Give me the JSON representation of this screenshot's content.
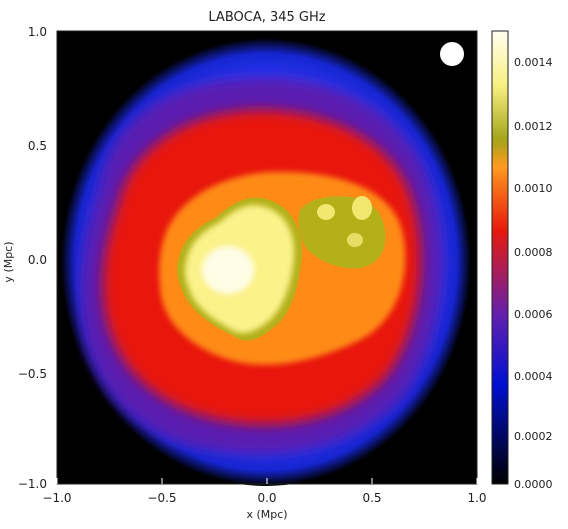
{
  "figure": {
    "title": "LABOCA, 345 GHz",
    "x_axis_label": "x (Mpc)",
    "y_axis_label": "y (Mpc)",
    "x_ticks": [
      "−1.0",
      "−0.5",
      "0.0",
      "0.5",
      "1.0"
    ],
    "y_ticks": [
      "1.0",
      "0.5",
      "0.0",
      "−0.5",
      "−1.0"
    ],
    "colorbar_ticks": [
      "0.0014",
      "0.0012",
      "0.0010",
      "0.0008",
      "0.0006",
      "0.0004",
      "0.0002",
      "0.0000"
    ],
    "beam_marker": "beam (filled circle)"
  },
  "colors": {
    "background": "#000000",
    "deep_blue": "#0012b5",
    "blue": "#2e3dff",
    "purple": "#6d1fb0",
    "red": "#ea1b0c",
    "orange": "#ff8a18",
    "olive": "#b9b31c",
    "yellow": "#fbf28a",
    "pale": "#fffde6"
  }
}
